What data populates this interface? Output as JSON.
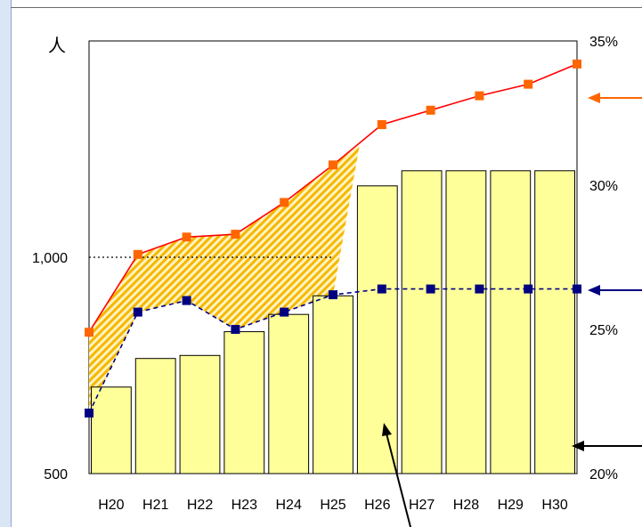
{
  "chart_data": {
    "type": "bar",
    "categories": [
      "H20",
      "H21",
      "H22",
      "H23",
      "H24",
      "H25",
      "H26",
      "H27",
      "H28",
      "H29",
      "H30"
    ],
    "left_axis": {
      "unit_label": "人",
      "ylim": [
        500,
        1500
      ],
      "ticks": [
        500,
        1000
      ],
      "tick_labels": [
        "500",
        "1,000"
      ]
    },
    "right_axis": {
      "ylim": [
        0.2,
        0.35
      ],
      "ticks": [
        0.2,
        0.25,
        0.3,
        0.35
      ],
      "tick_labels": [
        "20%",
        "25%",
        "30%",
        "35%"
      ]
    },
    "series": [
      {
        "kind": "bar",
        "axis": "left",
        "color": "#ffff99",
        "stroke": "#000000",
        "values": [
          700,
          766,
          773,
          828,
          868,
          911,
          1165,
          1200,
          1200,
          1200,
          1200
        ]
      },
      {
        "kind": "line",
        "axis": "right",
        "color": "#ff6600",
        "line_color": "#ff0000",
        "line_style": "solid",
        "values": [
          0.249,
          0.276,
          0.282,
          0.283,
          0.294,
          0.307,
          0.321,
          0.326,
          0.331,
          0.335,
          0.342
        ]
      },
      {
        "kind": "line",
        "axis": "right",
        "color": "#000080",
        "line_style": "dashed",
        "values": [
          0.221,
          0.256,
          0.26,
          0.25,
          0.256,
          0.262,
          0.264,
          0.264,
          0.264,
          0.264,
          0.264
        ]
      }
    ],
    "reference_line": {
      "axis": "left",
      "value": 1000,
      "style": "dotted",
      "x_from": "H20",
      "x_to": "H25"
    },
    "hatched_band": {
      "between": [
        "line-1",
        "line-2"
      ],
      "categories": [
        "H20",
        "H21",
        "H22",
        "H23",
        "H24",
        "H25"
      ],
      "color": "#f5b800"
    },
    "grid": false
  }
}
